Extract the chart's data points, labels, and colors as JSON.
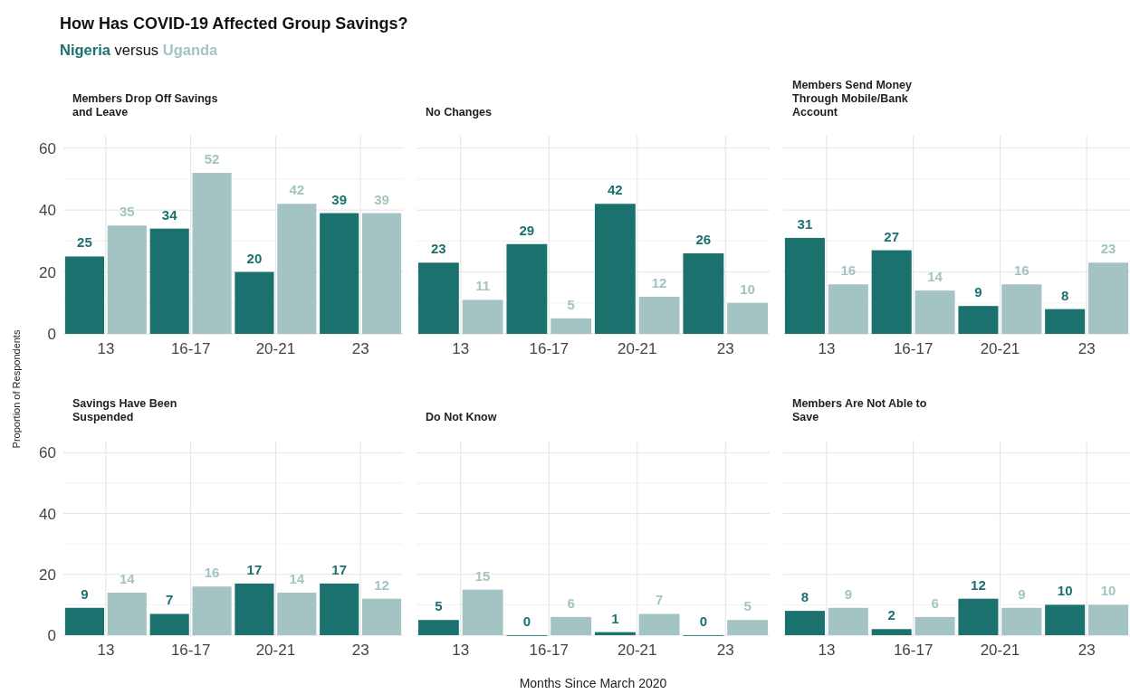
{
  "chart_data": [
    {
      "type": "bar",
      "title": "Members Drop Off Savings and Leave",
      "annotations": [
        "How Has COVID-19 Affected Group Savings?",
        "versus"
      ],
      "ylabel": "Proportion of Respondents",
      "categories": [
        "13",
        "16-17",
        "20-21",
        "23"
      ],
      "series": [
        {
          "name": "Nigeria",
          "color": "#1a716e",
          "values": [
            25,
            34,
            20,
            39
          ]
        },
        {
          "name": "Uganda",
          "color": "#a3c4c2",
          "values": [
            35,
            52,
            42,
            39
          ]
        }
      ],
      "ylim": [
        0,
        64
      ],
      "yticks": [
        0,
        20,
        40,
        60
      ],
      "grid": true,
      "data_labels": true
    },
    {
      "type": "bar",
      "title": "No Changes",
      "categories": [
        "13",
        "16-17",
        "20-21",
        "23"
      ],
      "series": [
        {
          "color": "#1a716e",
          "values": [
            23,
            29,
            42,
            26
          ]
        },
        {
          "color": "#a3c4c2",
          "values": [
            11,
            5,
            12,
            10
          ]
        }
      ],
      "ylim": [
        0,
        64
      ],
      "yticks": [
        0,
        20,
        40,
        60
      ],
      "grid": true,
      "data_labels": true,
      "tick_labels": "x"
    },
    {
      "type": "bar",
      "title": "Members Send Money Through Mobile/Bank Account",
      "categories": [
        "13",
        "16-17",
        "20-21",
        "23"
      ],
      "series": [
        {
          "color": "#1a716e",
          "values": [
            31,
            27,
            9,
            8
          ]
        },
        {
          "color": "#a3c4c2",
          "values": [
            16,
            14,
            16,
            23
          ]
        }
      ],
      "ylim": [
        0,
        64
      ],
      "yticks": [
        0,
        20,
        40,
        60
      ],
      "grid": true,
      "data_labels": true,
      "tick_labels": "x"
    },
    {
      "type": "bar",
      "title": "Savings Have Been Suspended",
      "categories": [
        "13",
        "16-17",
        "20-21",
        "23"
      ],
      "series": [
        {
          "color": "#1a716e",
          "values": [
            9,
            7,
            17,
            17
          ]
        },
        {
          "color": "#a3c4c2",
          "values": [
            14,
            16,
            14,
            12
          ]
        }
      ],
      "ylim": [
        0,
        64
      ],
      "yticks": [
        0,
        20,
        40,
        60
      ],
      "grid": true,
      "data_labels": true
    },
    {
      "type": "bar",
      "title": "Do Not Know",
      "xlabel": "Months Since March 2020",
      "categories": [
        "13",
        "16-17",
        "20-21",
        "23"
      ],
      "series": [
        {
          "color": "#1a716e",
          "values": [
            5,
            0,
            1,
            0
          ]
        },
        {
          "color": "#a3c4c2",
          "values": [
            15,
            6,
            7,
            5
          ]
        }
      ],
      "ylim": [
        0,
        64
      ],
      "yticks": [
        0,
        20,
        40,
        60
      ],
      "grid": true,
      "data_labels": true,
      "tick_labels": "x"
    },
    {
      "type": "bar",
      "title": "Members Are Not Able to Save",
      "categories": [
        "13",
        "16-17",
        "20-21",
        "23"
      ],
      "series": [
        {
          "color": "#1a716e",
          "values": [
            8,
            2,
            12,
            10
          ]
        },
        {
          "color": "#a3c4c2",
          "values": [
            9,
            6,
            9,
            10
          ]
        }
      ],
      "ylim": [
        0,
        64
      ],
      "yticks": [
        0,
        20,
        40,
        60
      ],
      "grid": true,
      "data_labels": true,
      "tick_labels": "x"
    }
  ]
}
